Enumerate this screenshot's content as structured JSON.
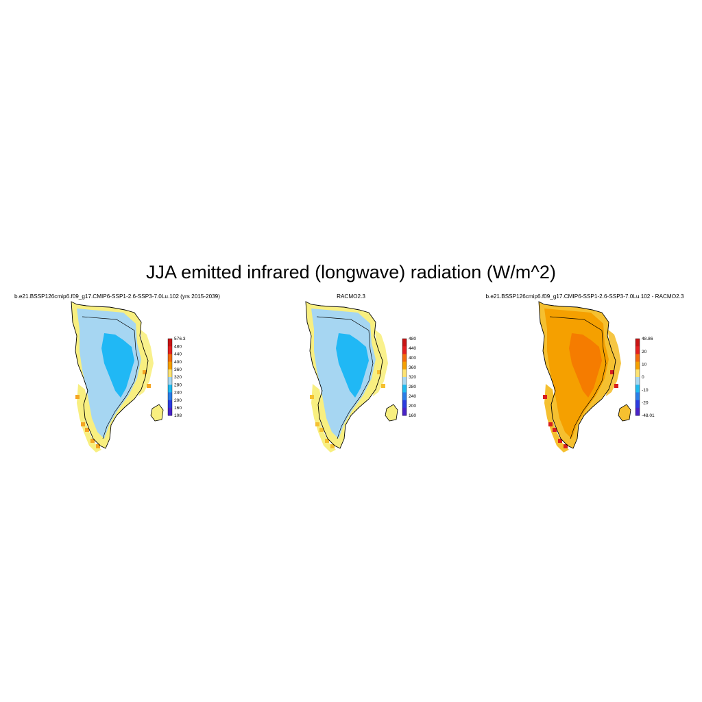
{
  "title": "JJA emitted infrared (longwave) radiation (W/m^2)",
  "panels": [
    {
      "title": "b.e21.BSSP126cmip6.f09_g17.CMIP6-SSP1-2.6-SSP3-7.0Lu.102 (yrs 2015-2039)",
      "fill": {
        "interior": "#20b8f5",
        "body": "#a6d6f2",
        "margin": "#f8ef80",
        "accent": "#f5a623"
      },
      "colorbar": {
        "labels": [
          "576.3",
          "480",
          "440",
          "400",
          "360",
          "320",
          "280",
          "240",
          "200",
          "160",
          "108"
        ],
        "colors": [
          "#c81414",
          "#e42020",
          "#f26b0c",
          "#f5a000",
          "#fde372",
          "#a8d8f0",
          "#1ebaf0",
          "#2a7de8",
          "#2b3be0",
          "#4822c8"
        ]
      }
    },
    {
      "title": "RACMO2.3",
      "fill": {
        "interior": "#20b8f5",
        "body": "#a6d6f2",
        "margin": "#f8ef80",
        "accent": "#f5c030"
      },
      "colorbar": {
        "labels": [
          "480",
          "440",
          "400",
          "360",
          "320",
          "280",
          "240",
          "200",
          "160"
        ],
        "colors": [
          "#c81414",
          "#e42020",
          "#f26b0c",
          "#f5a000",
          "#fde372",
          "#a8d8f0",
          "#1ebaf0",
          "#2a7de8",
          "#2b3be0",
          "#4822c8"
        ]
      }
    },
    {
      "title": "b.e21.BSSP126cmip6.f09_g17.CMIP6-SSP1-2.6-SSP3-7.0Lu.102 - RACMO2.3",
      "fill": {
        "interior": "#f57c00",
        "body": "#f5a000",
        "margin": "#f5c030",
        "accent": "#d81e1e"
      },
      "colorbar": {
        "labels": [
          "48.86",
          "20",
          "10",
          "0",
          "-10",
          "-20",
          "-48.01"
        ],
        "colors": [
          "#c81414",
          "#e42020",
          "#f26b0c",
          "#f5a000",
          "#fde372",
          "#a8d8f0",
          "#1ebaf0",
          "#2a7de8",
          "#2b3be0",
          "#4822c8"
        ]
      }
    }
  ]
}
